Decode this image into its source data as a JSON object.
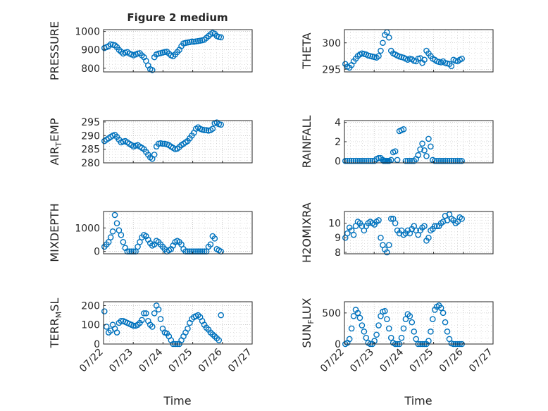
{
  "title": "Figure 2 medium",
  "colors": {
    "marker": "#0072BD",
    "axis": "#262626",
    "grid": "#b0b0b0",
    "background": "#ffffff"
  },
  "chart_data": [
    {
      "type": "scatter",
      "id": "pressure",
      "ylabel": "PRESSURE",
      "ylim": [
        780,
        1010
      ],
      "yticks": [
        "800",
        "900",
        "1000"
      ],
      "ytick_values": [
        800,
        900,
        1000
      ],
      "xticks": [],
      "xlim": [
        0,
        5
      ],
      "grid": "dotted",
      "x": [
        0.03,
        0.1,
        0.17,
        0.24,
        0.31,
        0.38,
        0.45,
        0.52,
        0.59,
        0.66,
        0.73,
        0.8,
        0.87,
        0.94,
        1.01,
        1.08,
        1.15,
        1.22,
        1.29,
        1.36,
        1.43,
        1.5,
        1.57,
        1.64,
        1.71,
        1.78,
        1.85,
        1.92,
        1.99,
        2.06,
        2.13,
        2.2,
        2.27,
        2.34,
        2.41,
        2.48,
        2.55,
        2.62,
        2.69,
        2.76,
        2.83,
        2.9,
        2.97,
        3.04,
        3.11,
        3.18,
        3.25,
        3.32,
        3.39,
        3.46,
        3.53,
        3.6,
        3.67,
        3.74,
        3.81,
        3.88,
        3.95
      ],
      "y": [
        910,
        915,
        920,
        930,
        928,
        925,
        915,
        900,
        890,
        880,
        885,
        888,
        880,
        875,
        870,
        875,
        880,
        882,
        870,
        860,
        840,
        815,
        795,
        790,
        860,
        875,
        880,
        882,
        885,
        888,
        890,
        880,
        870,
        865,
        875,
        888,
        900,
        920,
        935,
        938,
        940,
        942,
        945,
        944,
        946,
        948,
        950,
        952,
        955,
        965,
        975,
        985,
        992,
        988,
        975,
        970,
        968
      ]
    },
    {
      "type": "scatter",
      "id": "theta",
      "ylabel": "THETA",
      "ylim": [
        294.5,
        302.5
      ],
      "yticks": [
        "295",
        "300"
      ],
      "ytick_values": [
        295,
        300
      ],
      "xticks": [],
      "xlim": [
        0,
        5
      ],
      "grid": "dotted",
      "x": [
        0.03,
        0.1,
        0.17,
        0.24,
        0.31,
        0.38,
        0.45,
        0.52,
        0.59,
        0.66,
        0.73,
        0.8,
        0.87,
        0.94,
        1.01,
        1.08,
        1.15,
        1.22,
        1.29,
        1.36,
        1.43,
        1.5,
        1.57,
        1.64,
        1.71,
        1.78,
        1.85,
        1.92,
        1.99,
        2.06,
        2.13,
        2.2,
        2.27,
        2.34,
        2.41,
        2.48,
        2.55,
        2.62,
        2.69,
        2.76,
        2.83,
        2.9,
        2.97,
        3.04,
        3.11,
        3.18,
        3.25,
        3.32,
        3.39,
        3.46,
        3.53,
        3.6,
        3.67,
        3.74,
        3.81,
        3.88,
        3.95
      ],
      "y": [
        296,
        295.5,
        295.3,
        295.8,
        296.5,
        297,
        297.5,
        297.8,
        298,
        297.9,
        297.8,
        297.6,
        297.5,
        297.4,
        297.3,
        297.2,
        297.5,
        298.5,
        300,
        301.5,
        302,
        301,
        298.5,
        298,
        297.8,
        297.6,
        297.4,
        297.3,
        297.2,
        297,
        296.8,
        297,
        296.9,
        296.6,
        296.5,
        297,
        297.1,
        296.2,
        296.8,
        298.5,
        298,
        297.5,
        297,
        296.8,
        296.5,
        296.4,
        296.3,
        296.5,
        296.2,
        296.1,
        296,
        295.6,
        296.8,
        296.6,
        296.5,
        296.8,
        297
      ]
    },
    {
      "type": "scatter",
      "id": "air_temp",
      "ylabel_main": "AIR",
      "ylabel_sub": "T",
      "ylabel_rest": "EMP",
      "ylim": [
        280,
        295.5
      ],
      "yticks": [
        "280",
        "285",
        "290",
        "295"
      ],
      "ytick_values": [
        280,
        285,
        290,
        295
      ],
      "xticks": [],
      "xlim": [
        0,
        5
      ],
      "grid": "dotted",
      "x": [
        0.03,
        0.1,
        0.17,
        0.24,
        0.31,
        0.38,
        0.45,
        0.52,
        0.59,
        0.66,
        0.73,
        0.8,
        0.87,
        0.94,
        1.01,
        1.08,
        1.15,
        1.22,
        1.29,
        1.36,
        1.43,
        1.5,
        1.57,
        1.64,
        1.71,
        1.78,
        1.85,
        1.92,
        1.99,
        2.06,
        2.13,
        2.2,
        2.27,
        2.34,
        2.41,
        2.48,
        2.55,
        2.62,
        2.69,
        2.76,
        2.83,
        2.9,
        2.97,
        3.04,
        3.11,
        3.18,
        3.25,
        3.32,
        3.39,
        3.46,
        3.53,
        3.6,
        3.67,
        3.74,
        3.81,
        3.88,
        3.95
      ],
      "y": [
        288,
        288.5,
        289,
        289.5,
        290,
        290.3,
        289.5,
        288.5,
        287.5,
        287.8,
        288,
        287.5,
        287,
        286.5,
        286,
        286.3,
        286.5,
        286,
        285.5,
        285,
        284,
        283,
        282,
        281.5,
        283,
        286,
        287,
        287.2,
        287,
        287,
        286.8,
        286.5,
        286,
        285.5,
        285,
        285.2,
        285.8,
        286.5,
        287,
        287.5,
        288,
        289,
        290,
        291,
        292.5,
        293,
        292.5,
        292.2,
        292,
        292,
        291.8,
        292,
        292.5,
        294.5,
        294.8,
        294.2,
        294
      ]
    },
    {
      "type": "scatter",
      "id": "rainfall",
      "ylabel": "RAINFALL",
      "ylim": [
        -0.2,
        4.2
      ],
      "yticks": [
        "0",
        "2",
        "4"
      ],
      "ytick_values": [
        0,
        2,
        4
      ],
      "xticks": [],
      "xlim": [
        0,
        5
      ],
      "grid": "dotted",
      "x": [
        0.03,
        0.1,
        0.17,
        0.24,
        0.31,
        0.38,
        0.45,
        0.52,
        0.59,
        0.66,
        0.73,
        0.8,
        0.87,
        0.94,
        1.01,
        1.08,
        1.15,
        1.22,
        1.29,
        1.36,
        1.43,
        1.5,
        1.57,
        1.64,
        1.71,
        1.78,
        1.85,
        1.92,
        1.99,
        2.06,
        2.13,
        2.2,
        2.27,
        2.34,
        2.41,
        2.48,
        2.55,
        2.62,
        2.69,
        2.76,
        2.83,
        2.9,
        2.97,
        3.04,
        3.11,
        3.18,
        3.25,
        3.32,
        3.39,
        3.46,
        3.53,
        3.6,
        3.67,
        3.74,
        3.81,
        3.88,
        3.95,
        1.32,
        1.39,
        1.46
      ],
      "y": [
        0,
        0,
        0,
        0,
        0,
        0,
        0,
        0,
        0,
        0,
        0,
        0,
        0,
        0,
        0,
        0.2,
        0.3,
        0.3,
        0.1,
        0,
        0,
        0,
        0.1,
        0.9,
        1,
        0.1,
        3.1,
        3.2,
        3.3,
        0,
        0,
        0,
        0,
        0,
        0.2,
        0.6,
        1.2,
        1.8,
        1.1,
        0.5,
        2.3,
        1.5,
        0.1,
        0,
        0,
        0,
        0,
        0,
        0,
        0,
        0,
        0,
        0,
        0,
        0,
        0,
        0,
        0,
        0,
        0
      ]
    },
    {
      "type": "scatter",
      "id": "mixdepth",
      "ylabel": "MIXDEPTH",
      "ylim": [
        -100,
        1700
      ],
      "yticks": [
        "0",
        "1000"
      ],
      "ytick_values": [
        0,
        1000
      ],
      "xticks": [],
      "xlim": [
        0,
        5
      ],
      "grid": "dotted",
      "x": [
        0.03,
        0.1,
        0.17,
        0.24,
        0.31,
        0.38,
        0.45,
        0.52,
        0.59,
        0.66,
        0.73,
        0.8,
        0.87,
        0.94,
        1.01,
        1.08,
        1.15,
        1.22,
        1.29,
        1.36,
        1.43,
        1.5,
        1.57,
        1.64,
        1.71,
        1.78,
        1.85,
        1.92,
        1.99,
        2.06,
        2.13,
        2.2,
        2.27,
        2.34,
        2.41,
        2.48,
        2.55,
        2.62,
        2.69,
        2.76,
        2.83,
        2.9,
        2.97,
        3.04,
        3.11,
        3.18,
        3.25,
        3.32,
        3.39,
        3.46,
        3.53,
        3.6,
        3.67,
        3.74,
        3.81,
        3.88,
        3.95
      ],
      "y": [
        200,
        300,
        400,
        600,
        850,
        1550,
        1200,
        900,
        700,
        400,
        150,
        0,
        0,
        0,
        0,
        0,
        200,
        400,
        600,
        700,
        650,
        500,
        350,
        250,
        300,
        450,
        400,
        300,
        200,
        100,
        0,
        50,
        100,
        250,
        400,
        450,
        400,
        300,
        100,
        0,
        0,
        0,
        0,
        0,
        0,
        0,
        0,
        0,
        0,
        0,
        200,
        300,
        650,
        550,
        100,
        50,
        0
      ]
    },
    {
      "type": "scatter",
      "id": "h2omixra",
      "ylabel": "H2OMIXRA",
      "ylim": [
        7.9,
        10.8
      ],
      "yticks": [
        "8",
        "9",
        "10"
      ],
      "ytick_values": [
        8,
        9,
        10
      ],
      "xticks": [],
      "xlim": [
        0,
        5
      ],
      "grid": "dotted",
      "x": [
        0.03,
        0.1,
        0.17,
        0.24,
        0.31,
        0.38,
        0.45,
        0.52,
        0.59,
        0.66,
        0.73,
        0.8,
        0.87,
        0.94,
        1.01,
        1.08,
        1.15,
        1.22,
        1.29,
        1.36,
        1.43,
        1.5,
        1.57,
        1.64,
        1.71,
        1.78,
        1.85,
        1.92,
        1.99,
        2.06,
        2.13,
        2.2,
        2.27,
        2.34,
        2.41,
        2.48,
        2.55,
        2.62,
        2.69,
        2.76,
        2.83,
        2.9,
        2.97,
        3.04,
        3.11,
        3.18,
        3.25,
        3.32,
        3.39,
        3.46,
        3.53,
        3.6,
        3.67,
        3.74,
        3.81,
        3.88,
        3.95
      ],
      "y": [
        9,
        9.3,
        9.7,
        9.5,
        9.2,
        9.8,
        10.1,
        10,
        9.8,
        9.5,
        9.8,
        10,
        10.1,
        10,
        9.9,
        10.1,
        10.2,
        9,
        8.5,
        8.2,
        8,
        8.5,
        10.3,
        10.3,
        10,
        9.5,
        9.3,
        9.5,
        9.2,
        9.3,
        9.5,
        9.3,
        9.6,
        9.8,
        9.5,
        9.2,
        9.5,
        9.7,
        9.8,
        8.8,
        9,
        9.5,
        9.6,
        9.8,
        9.8,
        9.8,
        10,
        10.1,
        10.5,
        10.2,
        10.6,
        10.3,
        10.2,
        10,
        10.1,
        10.4,
        10.3
      ]
    },
    {
      "type": "scatter",
      "id": "terr_msl",
      "ylabel_main": "TERR",
      "ylabel_sub": "M",
      "ylabel_rest": "SL",
      "ylim": [
        0,
        220
      ],
      "yticks": [
        "0",
        "100",
        "200"
      ],
      "ytick_values": [
        0,
        100,
        200
      ],
      "xticks": [
        "07/22",
        "07/23",
        "07/24",
        "07/25",
        "07/26",
        "07/27"
      ],
      "xlim": [
        0,
        5
      ],
      "xlabel": "Time",
      "grid": "dotted",
      "x": [
        0.03,
        0.1,
        0.17,
        0.24,
        0.31,
        0.38,
        0.45,
        0.52,
        0.59,
        0.66,
        0.73,
        0.8,
        0.87,
        0.94,
        1.01,
        1.08,
        1.15,
        1.22,
        1.29,
        1.36,
        1.43,
        1.5,
        1.57,
        1.64,
        1.71,
        1.78,
        1.85,
        1.92,
        1.99,
        2.06,
        2.13,
        2.2,
        2.27,
        2.34,
        2.41,
        2.48,
        2.55,
        2.62,
        2.69,
        2.76,
        2.83,
        2.9,
        2.97,
        3.04,
        3.11,
        3.18,
        3.25,
        3.32,
        3.39,
        3.46,
        3.53,
        3.6,
        3.67,
        3.74,
        3.81,
        3.88,
        3.95
      ],
      "y": [
        170,
        90,
        60,
        70,
        100,
        80,
        60,
        110,
        120,
        120,
        115,
        110,
        105,
        100,
        95,
        95,
        100,
        110,
        125,
        160,
        160,
        120,
        100,
        90,
        160,
        200,
        180,
        130,
        80,
        60,
        55,
        40,
        20,
        0,
        0,
        0,
        0,
        20,
        40,
        60,
        80,
        110,
        130,
        140,
        145,
        150,
        140,
        120,
        100,
        85,
        75,
        60,
        50,
        40,
        30,
        20,
        150
      ]
    },
    {
      "type": "scatter",
      "id": "sun_flux",
      "ylabel_main": "SUN",
      "ylabel_sub": "F",
      "ylabel_rest": "LUX",
      "ylim": [
        0,
        680
      ],
      "yticks": [
        "0",
        "500"
      ],
      "ytick_values": [
        0,
        500
      ],
      "xticks": [
        "07/22",
        "07/23",
        "07/24",
        "07/25",
        "07/26",
        "07/27"
      ],
      "xlim": [
        0,
        5
      ],
      "xlabel": "Time",
      "grid": "dotted",
      "x": [
        0.03,
        0.1,
        0.17,
        0.24,
        0.31,
        0.38,
        0.45,
        0.52,
        0.59,
        0.66,
        0.73,
        0.8,
        0.87,
        0.94,
        1.01,
        1.08,
        1.15,
        1.22,
        1.29,
        1.36,
        1.43,
        1.5,
        1.57,
        1.64,
        1.71,
        1.78,
        1.85,
        1.92,
        1.99,
        2.06,
        2.13,
        2.2,
        2.27,
        2.34,
        2.41,
        2.48,
        2.55,
        2.62,
        2.69,
        2.76,
        2.83,
        2.9,
        2.97,
        3.04,
        3.11,
        3.18,
        3.25,
        3.32,
        3.39,
        3.46,
        3.53,
        3.6,
        3.67,
        3.74,
        3.81,
        3.88,
        3.95
      ],
      "y": [
        0,
        20,
        80,
        250,
        450,
        550,
        500,
        420,
        300,
        200,
        100,
        20,
        0,
        0,
        50,
        150,
        300,
        450,
        520,
        530,
        400,
        250,
        100,
        20,
        0,
        0,
        0,
        100,
        250,
        400,
        480,
        450,
        350,
        200,
        80,
        0,
        0,
        0,
        0,
        0,
        50,
        200,
        400,
        550,
        600,
        620,
        580,
        500,
        350,
        200,
        80,
        10,
        0,
        0,
        0,
        0,
        0
      ]
    }
  ]
}
